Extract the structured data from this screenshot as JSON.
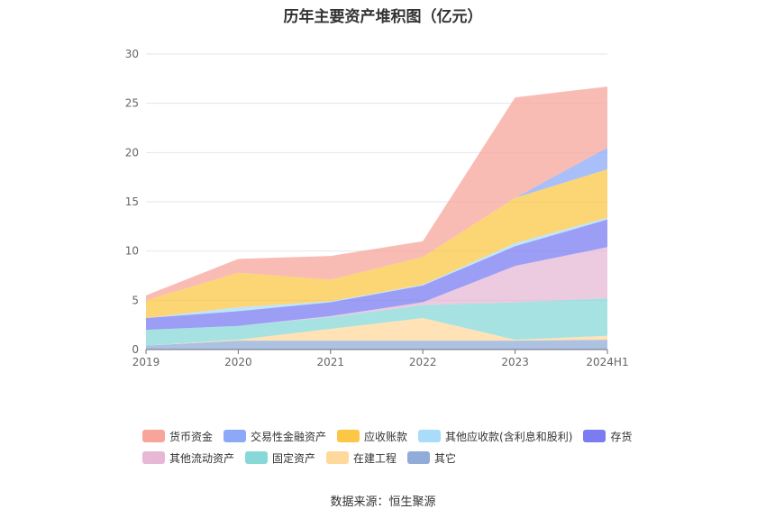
{
  "chart_data": {
    "type": "area",
    "stacked": true,
    "title": "历年主要资产堆积图（亿元）",
    "categories": [
      "2019",
      "2020",
      "2021",
      "2022",
      "2023",
      "2024H1"
    ],
    "ylim": [
      0,
      30
    ],
    "yticks": [
      0,
      5,
      10,
      15,
      20,
      25,
      30
    ],
    "grid": true,
    "legend_position": "bottom",
    "series": [
      {
        "name": "其它",
        "color": "#91acd9",
        "values": [
          0.4,
          0.9,
          0.9,
          0.9,
          0.9,
          1.0
        ]
      },
      {
        "name": "在建工程",
        "color": "#ffd89c",
        "values": [
          0.0,
          0.1,
          1.2,
          2.3,
          0.1,
          0.4
        ]
      },
      {
        "name": "固定资产",
        "color": "#88d8d8",
        "values": [
          1.6,
          1.4,
          1.2,
          1.3,
          3.8,
          3.8
        ]
      },
      {
        "name": "其他流动资产",
        "color": "#e6b8d6",
        "values": [
          0.0,
          0.0,
          0.1,
          0.3,
          3.7,
          5.2
        ]
      },
      {
        "name": "存货",
        "color": "#7b7cf2",
        "values": [
          1.2,
          1.5,
          1.4,
          1.7,
          2.0,
          2.8
        ]
      },
      {
        "name": "其他应收款(含利息和股利)",
        "color": "#a8dcf8",
        "values": [
          0.0,
          0.4,
          0.1,
          0.1,
          0.3,
          0.2
        ]
      },
      {
        "name": "应收账款",
        "color": "#fbc745",
        "values": [
          1.8,
          3.5,
          2.2,
          2.8,
          4.6,
          4.9
        ]
      },
      {
        "name": "交易性金融资产",
        "color": "#8ba9f7",
        "values": [
          0.0,
          0.0,
          0.0,
          0.0,
          0.0,
          2.2
        ]
      },
      {
        "name": "货币资金",
        "color": "#f7a59b",
        "values": [
          0.5,
          1.4,
          2.4,
          1.6,
          10.2,
          6.2
        ]
      }
    ]
  },
  "legend": {
    "row1": [
      {
        "label": "货币资金",
        "color": "#f7a59b"
      },
      {
        "label": "交易性金融资产",
        "color": "#8ba9f7"
      },
      {
        "label": "应收账款",
        "color": "#fbc745"
      },
      {
        "label": "其他应收款(含利息和股利)",
        "color": "#a8dcf8"
      },
      {
        "label": "存货",
        "color": "#7b7cf2"
      }
    ],
    "row2": [
      {
        "label": "其他流动资产",
        "color": "#e6b8d6"
      },
      {
        "label": "固定资产",
        "color": "#88d8d8"
      },
      {
        "label": "在建工程",
        "color": "#ffd89c"
      },
      {
        "label": "其它",
        "color": "#91acd9"
      }
    ]
  },
  "source": "数据来源：恒生聚源"
}
